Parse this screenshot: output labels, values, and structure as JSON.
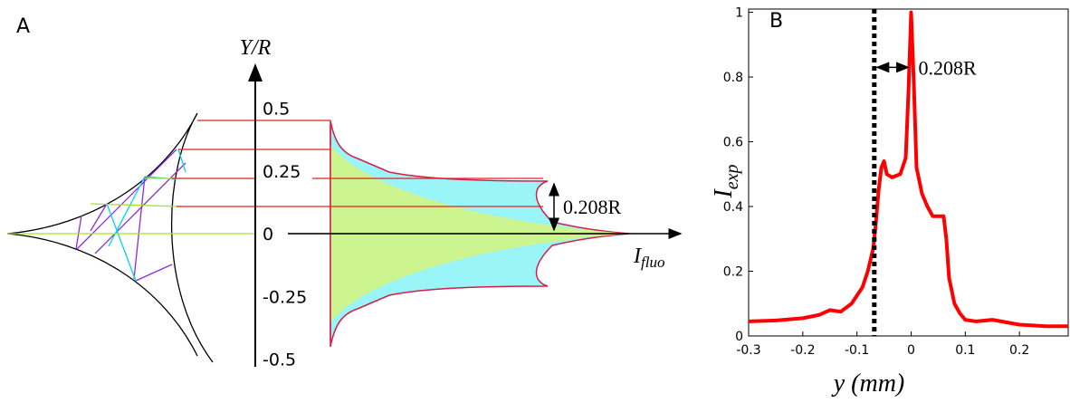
{
  "panel_a": {
    "label": "A",
    "y_label": "Y/R",
    "x_label": "I",
    "x_label_sub": "fluo",
    "annotation": "0.208R",
    "ylim": [
      -0.5,
      0.5
    ],
    "yticks": [
      0.5,
      0.25,
      0,
      -0.25,
      -0.5
    ]
  },
  "chart_data": {
    "type": "line",
    "label": "B",
    "xlabel": "y (mm)",
    "ylabel": "I",
    "ylabel_sub": "exp",
    "annotation": "0.208R",
    "marker_x": -0.068,
    "xlim": [
      -0.3,
      0.29
    ],
    "xticks": [
      -0.3,
      -0.2,
      -0.1,
      0,
      0.1,
      0.2
    ],
    "ylim": [
      0,
      1.01
    ],
    "yticks": [
      0,
      0.2,
      0.4,
      0.6,
      0.8,
      1
    ],
    "x": [
      -0.3,
      -0.25,
      -0.2,
      -0.17,
      -0.15,
      -0.13,
      -0.11,
      -0.09,
      -0.08,
      -0.07,
      -0.065,
      -0.06,
      -0.055,
      -0.05,
      -0.045,
      -0.035,
      -0.02,
      -0.01,
      -0.005,
      0,
      0.005,
      0.01,
      0.02,
      0.03,
      0.04,
      0.05,
      0.06,
      0.065,
      0.07,
      0.08,
      0.09,
      0.1,
      0.12,
      0.15,
      0.2,
      0.25,
      0.29
    ],
    "series": [
      {
        "color": "#ff0000",
        "values": [
          0.045,
          0.048,
          0.055,
          0.065,
          0.08,
          0.075,
          0.1,
          0.15,
          0.2,
          0.27,
          0.35,
          0.45,
          0.52,
          0.54,
          0.5,
          0.49,
          0.5,
          0.55,
          0.75,
          1.0,
          0.78,
          0.52,
          0.44,
          0.4,
          0.37,
          0.37,
          0.37,
          0.3,
          0.18,
          0.1,
          0.07,
          0.05,
          0.045,
          0.05,
          0.035,
          0.03,
          0.03
        ]
      }
    ]
  }
}
